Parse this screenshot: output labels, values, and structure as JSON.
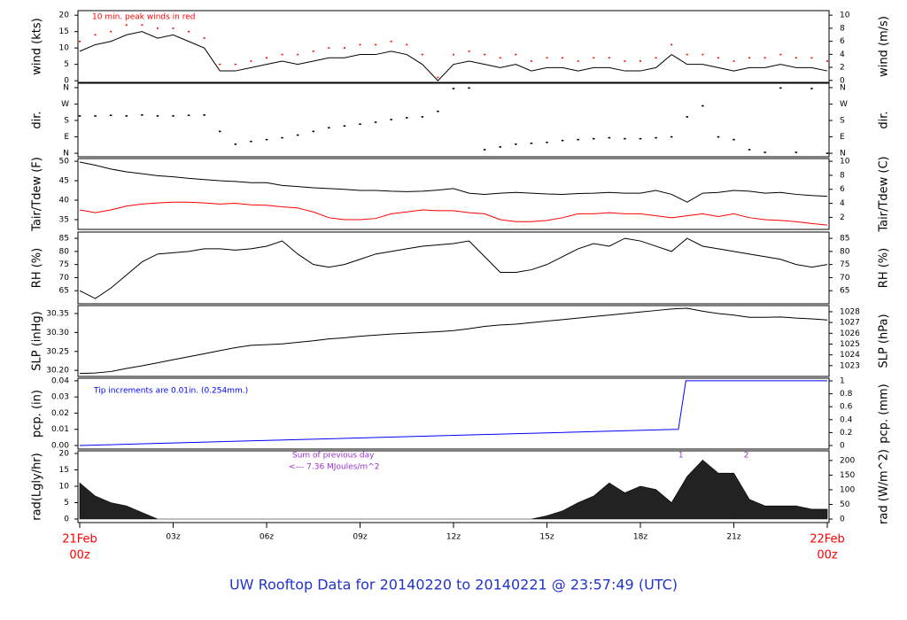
{
  "title": "UW Rooftop Data for 20140220  to  20140221 @ 23:57:49  (UTC)",
  "chart_data": [
    {
      "type": "line",
      "ylabel": "wind (kts)",
      "y2label": "wind (m/s)",
      "annotation": "10 min. peak winds in red",
      "xlim": [
        0,
        24
      ],
      "ylim": [
        -0.5,
        21.4
      ],
      "yticks": [
        0,
        5,
        10,
        15,
        20
      ],
      "y2lim": [
        -0.3,
        10.7
      ],
      "y2ticks": [
        0,
        2,
        4,
        6,
        8,
        10
      ],
      "x": [
        0,
        0.5,
        1,
        1.5,
        2,
        2.5,
        3,
        3.5,
        4,
        4.5,
        5,
        5.5,
        6,
        6.5,
        7,
        7.5,
        8,
        8.5,
        9,
        9.5,
        10,
        10.5,
        11,
        11.5,
        12,
        12.5,
        13,
        13.5,
        14,
        14.5,
        15,
        15.5,
        16,
        16.5,
        17,
        17.5,
        18,
        18.5,
        19,
        19.5,
        20,
        20.5,
        21,
        21.5,
        22,
        22.5,
        23,
        23.5,
        24
      ],
      "series": [
        {
          "color": "#000000",
          "style": "line",
          "values": [
            9,
            11,
            12,
            14,
            15,
            13,
            14,
            12,
            10,
            3,
            3,
            4,
            5,
            6,
            5,
            6,
            7,
            7,
            8,
            8,
            9,
            8,
            5,
            0,
            5,
            6,
            5,
            4,
            5,
            3,
            4,
            4,
            3,
            4,
            4,
            3,
            3,
            4,
            8,
            5,
            5,
            4,
            3,
            4,
            4,
            5,
            4,
            4,
            3
          ]
        },
        {
          "color": "#ff0000",
          "style": "points",
          "values": [
            12,
            14,
            15,
            17,
            17,
            16,
            16,
            15,
            13,
            5,
            5,
            6,
            7,
            8,
            8,
            9,
            10,
            10,
            11,
            11,
            12,
            11,
            8,
            1,
            8,
            9,
            8,
            7,
            8,
            6,
            7,
            7,
            6,
            7,
            7,
            6,
            6,
            7,
            11,
            8,
            8,
            7,
            6,
            7,
            7,
            8,
            7,
            7,
            6
          ]
        }
      ]
    },
    {
      "type": "scatter",
      "ylabel": "dir.",
      "y2label": "dir.",
      "xlim": [
        0,
        24
      ],
      "ylim": [
        -19,
        384
      ],
      "yticks": [
        {
          "value": 0,
          "label": "N"
        },
        {
          "value": 90,
          "label": "E"
        },
        {
          "value": 180,
          "label": "S"
        },
        {
          "value": 270,
          "label": "W"
        },
        {
          "value": 360,
          "label": "N"
        }
      ],
      "y2lim": [
        -19,
        384
      ],
      "y2ticks": [
        {
          "value": 0,
          "label": "N"
        },
        {
          "value": 90,
          "label": "E"
        },
        {
          "value": 180,
          "label": "S"
        },
        {
          "value": 270,
          "label": "W"
        },
        {
          "value": 360,
          "label": "N"
        }
      ],
      "x": [
        0,
        0.5,
        1,
        1.5,
        2,
        2.5,
        3,
        3.5,
        4,
        4.5,
        5,
        5.5,
        6,
        6.5,
        7,
        7.5,
        8,
        8.5,
        9,
        9.5,
        10,
        10.5,
        11,
        11.5,
        12,
        12.5,
        13,
        13.5,
        14,
        14.5,
        15,
        15.5,
        16,
        16.5,
        17,
        17.5,
        18,
        18.5,
        19,
        19.5,
        20,
        20.5,
        21,
        21.5,
        22,
        22.5,
        23,
        23.5,
        24
      ],
      "series": [
        {
          "color": "#000000",
          "values": [
            205,
            205,
            208,
            205,
            210,
            205,
            205,
            208,
            210,
            120,
            50,
            65,
            75,
            85,
            100,
            120,
            140,
            150,
            160,
            170,
            185,
            195,
            200,
            230,
            355,
            358,
            20,
            35,
            50,
            55,
            60,
            70,
            75,
            80,
            85,
            80,
            80,
            85,
            90,
            200,
            260,
            90,
            75,
            20,
            5,
            358,
            5,
            355,
            0
          ]
        }
      ]
    },
    {
      "type": "line",
      "ylabel": "Tair/Tdew (F)",
      "y2label": "Tair/Tdew (C)",
      "xlim": [
        0,
        24
      ],
      "ylim": [
        32.5,
        50.7
      ],
      "yticks": [
        35,
        40,
        45,
        50
      ],
      "y2lim": [
        0.28,
        10.39
      ],
      "y2ticks": [
        2,
        4,
        6,
        8,
        10
      ],
      "x": [
        0,
        0.5,
        1,
        1.5,
        2,
        2.5,
        3,
        3.5,
        4,
        4.5,
        5,
        5.5,
        6,
        6.5,
        7,
        7.5,
        8,
        8.5,
        9,
        9.5,
        10,
        10.5,
        11,
        11.5,
        12,
        12.5,
        13,
        13.5,
        14,
        14.5,
        15,
        15.5,
        16,
        16.5,
        17,
        17.5,
        18,
        18.5,
        19,
        19.5,
        20,
        20.5,
        21,
        21.5,
        22,
        22.5,
        23,
        23.5,
        24
      ],
      "series": [
        {
          "color": "#000000",
          "style": "line",
          "values": [
            49.8,
            49,
            48,
            47.3,
            46.8,
            46.3,
            46,
            45.6,
            45.3,
            45,
            44.8,
            44.5,
            44.5,
            43.8,
            43.5,
            43.2,
            43,
            42.8,
            42.5,
            42.5,
            42.3,
            42.2,
            42.3,
            42.6,
            43,
            41.8,
            41.5,
            41.8,
            42,
            41.8,
            41.6,
            41.5,
            41.7,
            41.8,
            42,
            41.8,
            41.8,
            42.5,
            41.5,
            39.5,
            41.8,
            42,
            42.5,
            42.3,
            41.8,
            42,
            41.5,
            41.2,
            41
          ]
        },
        {
          "color": "#ff0000",
          "style": "line",
          "values": [
            37.5,
            36.8,
            37.5,
            38.5,
            39,
            39.3,
            39.5,
            39.5,
            39.3,
            39,
            39.2,
            38.8,
            38.7,
            38.3,
            38,
            37,
            35.5,
            35,
            35,
            35.3,
            36.5,
            37,
            37.5,
            37.3,
            37.3,
            36.8,
            36.5,
            35,
            34.5,
            34.5,
            34.8,
            35.5,
            36.5,
            36.5,
            36.8,
            36.5,
            36.5,
            36,
            35.5,
            36,
            36.5,
            35.8,
            36.5,
            35.5,
            35,
            34.8,
            34.5,
            34,
            33.6
          ]
        }
      ]
    },
    {
      "type": "line",
      "ylabel": "RH (%)",
      "y2label": "RH (%)",
      "xlim": [
        0,
        24
      ],
      "ylim": [
        60,
        87.4
      ],
      "yticks": [
        65,
        70,
        75,
        80,
        85
      ],
      "y2lim": [
        60,
        87.4
      ],
      "y2ticks": [
        65,
        70,
        75,
        80,
        85
      ],
      "x": [
        0,
        0.5,
        1,
        1.5,
        2,
        2.5,
        3,
        3.5,
        4,
        4.5,
        5,
        5.5,
        6,
        6.5,
        7,
        7.5,
        8,
        8.5,
        9,
        9.5,
        10,
        10.5,
        11,
        11.5,
        12,
        12.5,
        13,
        13.5,
        14,
        14.5,
        15,
        15.5,
        16,
        16.5,
        17,
        17.5,
        18,
        18.5,
        19,
        19.5,
        20,
        20.5,
        21,
        21.5,
        22,
        22.5,
        23,
        23.5,
        24
      ],
      "series": [
        {
          "color": "#000000",
          "style": "line",
          "values": [
            65,
            62,
            66,
            71,
            76,
            79,
            79.5,
            80,
            81,
            81,
            80.5,
            81,
            82,
            84,
            79,
            75,
            74,
            75,
            77,
            79,
            80,
            81,
            82,
            82.5,
            83,
            84,
            78,
            72,
            72,
            73,
            75,
            78,
            81,
            83,
            82,
            85,
            84,
            82,
            80,
            85,
            82,
            81,
            80,
            79,
            78,
            77,
            75,
            74,
            75
          ]
        }
      ]
    },
    {
      "type": "line",
      "ylabel": "SLP (inHg)",
      "y2label": "SLP (hPa)",
      "xlim": [
        0,
        24
      ],
      "ylim": [
        30.184,
        30.371
      ],
      "yticks": [
        {
          "value": 30.2,
          "label": "30.20"
        },
        30.25,
        {
          "value": 30.3,
          "label": "30.30"
        },
        30.35
      ],
      "y2lim": [
        1022.0,
        1028.57
      ],
      "y2ticks": [
        1023,
        1024,
        1025,
        1026,
        1027,
        1028
      ],
      "x": [
        0,
        0.5,
        1,
        1.5,
        2,
        2.5,
        3,
        3.5,
        4,
        4.5,
        5,
        5.5,
        6,
        6.5,
        7,
        7.5,
        8,
        8.5,
        9,
        9.5,
        10,
        10.5,
        11,
        11.5,
        12,
        12.5,
        13,
        13.5,
        14,
        14.5,
        15,
        15.5,
        16,
        16.5,
        17,
        17.5,
        18,
        18.5,
        19,
        19.5,
        20,
        20.5,
        21,
        21.5,
        22,
        22.5,
        23,
        23.5,
        24
      ],
      "series": [
        {
          "color": "#000000",
          "style": "line",
          "values": [
            30.192,
            30.193,
            30.197,
            30.205,
            30.212,
            30.22,
            30.228,
            30.236,
            30.244,
            30.252,
            30.26,
            30.266,
            30.268,
            30.27,
            30.274,
            30.278,
            30.283,
            30.286,
            30.29,
            30.293,
            30.296,
            30.298,
            30.3,
            30.302,
            30.305,
            30.31,
            30.316,
            30.32,
            30.322,
            30.326,
            30.33,
            30.334,
            30.338,
            30.342,
            30.346,
            30.35,
            30.354,
            30.358,
            30.362,
            30.364,
            30.356,
            30.35,
            30.346,
            30.34,
            30.34,
            30.341,
            30.338,
            30.336,
            30.333
          ]
        }
      ]
    },
    {
      "type": "line",
      "ylabel": "pcp. (in)",
      "y2label": "pcp. (mm)",
      "annotation": "Tip increments are 0.01in. (0.254mm.)",
      "xlim": [
        0,
        24
      ],
      "ylim": [
        -0.0022,
        0.0416
      ],
      "yticks": [
        {
          "value": 0,
          "label": "0.00"
        },
        0.01,
        0.02,
        0.03,
        0.04
      ],
      "y2lim": [
        -0.055,
        1.041
      ],
      "y2ticks": [
        0,
        0.2,
        0.4,
        0.6,
        0.8,
        1
      ],
      "x": [
        0,
        19.22,
        19.3,
        19.38,
        19.46,
        24
      ],
      "series": [
        {
          "color": "#0000ff",
          "style": "line",
          "values": [
            0,
            0.01,
            0.02,
            0.03,
            0.04,
            0.04
          ]
        }
      ],
      "tip_markers": [
        {
          "x": 19.3,
          "label": "1"
        },
        {
          "x": 21.4,
          "label": "2"
        }
      ]
    },
    {
      "type": "area",
      "ylabel": "rad(Lgly/hr)",
      "y2label": "rad (W/m^2)",
      "annotations": [
        "Sum of previous day",
        "<--- 7.36 MJoules/m^2"
      ],
      "xlim": [
        0,
        24
      ],
      "ylim": [
        -1.08,
        20.8
      ],
      "yticks": [
        0,
        5,
        10,
        15,
        20
      ],
      "y2lim": [
        -12,
        233
      ],
      "y2ticks": [
        0,
        50,
        100,
        150,
        200
      ],
      "xticks": [
        {
          "value": 0,
          "label": "00z"
        },
        {
          "value": 3,
          "label": "03z"
        },
        {
          "value": 6,
          "label": "06z"
        },
        {
          "value": 9,
          "label": "09z"
        },
        {
          "value": 12,
          "label": "12z"
        },
        {
          "value": 15,
          "label": "15z"
        },
        {
          "value": 18,
          "label": "18z"
        },
        {
          "value": 21,
          "label": "21z"
        },
        {
          "value": 24,
          "label": "00z"
        }
      ],
      "start_date": "21Feb",
      "end_date": "22Feb",
      "x": [
        0,
        0.5,
        1,
        1.5,
        2,
        2.5,
        3,
        3.5,
        4,
        4.5,
        5,
        5.5,
        6,
        6.5,
        7,
        7.5,
        8,
        8.5,
        9,
        9.5,
        10,
        10.5,
        11,
        11.5,
        12,
        12.5,
        13,
        13.5,
        14,
        14.5,
        15,
        15.5,
        16,
        16.5,
        17,
        17.5,
        18,
        18.5,
        19,
        19.5,
        20,
        20.5,
        21,
        21.5,
        22,
        22.5,
        23,
        23.5,
        24
      ],
      "series": [
        {
          "color": "#222222",
          "values": [
            11,
            7,
            5,
            4,
            2,
            0,
            0,
            0,
            0,
            0,
            0,
            0,
            0,
            0,
            0,
            0,
            0,
            0,
            0,
            0,
            0,
            0,
            0,
            0,
            0,
            0,
            0,
            0,
            0,
            0,
            1,
            2.5,
            5,
            7,
            11,
            8,
            10,
            9,
            5,
            13,
            18,
            14,
            14,
            6,
            4,
            4,
            4,
            3,
            3
          ]
        }
      ]
    }
  ]
}
